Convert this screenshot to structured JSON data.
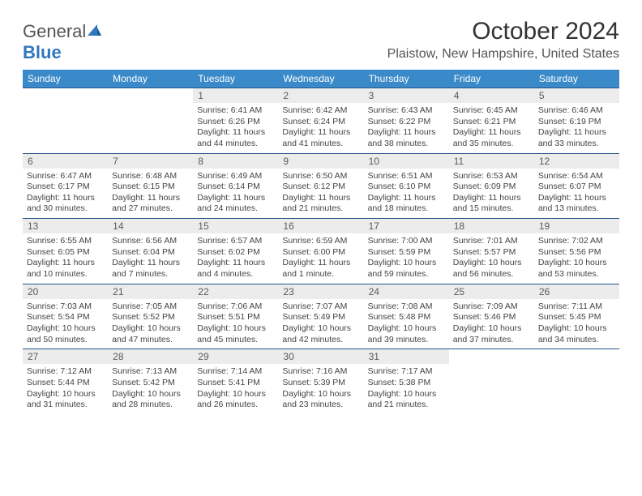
{
  "brand": {
    "name_g": "General",
    "name_b": "Blue"
  },
  "title": "October 2024",
  "location": "Plaistow, New Hampshire, United States",
  "colors": {
    "header_bg": "#3a8ac9",
    "header_text": "#ffffff",
    "daynum_bg": "#ececec",
    "border": "#25528a",
    "logo_blue": "#2f78bd",
    "page_bg": "#ffffff",
    "text_primary": "#333333",
    "text_muted": "#555555",
    "cell_text": "#444444"
  },
  "typography": {
    "title_fontsize": 30,
    "location_fontsize": 16,
    "weekday_fontsize": 12,
    "daynum_fontsize": 12,
    "content_fontsize": 10.5
  },
  "weekdays": [
    "Sunday",
    "Monday",
    "Tuesday",
    "Wednesday",
    "Thursday",
    "Friday",
    "Saturday"
  ],
  "weeks": [
    [
      {
        "n": "",
        "sr": "",
        "ss": "",
        "dl": ""
      },
      {
        "n": "",
        "sr": "",
        "ss": "",
        "dl": ""
      },
      {
        "n": "1",
        "sr": "Sunrise: 6:41 AM",
        "ss": "Sunset: 6:26 PM",
        "dl": "Daylight: 11 hours and 44 minutes."
      },
      {
        "n": "2",
        "sr": "Sunrise: 6:42 AM",
        "ss": "Sunset: 6:24 PM",
        "dl": "Daylight: 11 hours and 41 minutes."
      },
      {
        "n": "3",
        "sr": "Sunrise: 6:43 AM",
        "ss": "Sunset: 6:22 PM",
        "dl": "Daylight: 11 hours and 38 minutes."
      },
      {
        "n": "4",
        "sr": "Sunrise: 6:45 AM",
        "ss": "Sunset: 6:21 PM",
        "dl": "Daylight: 11 hours and 35 minutes."
      },
      {
        "n": "5",
        "sr": "Sunrise: 6:46 AM",
        "ss": "Sunset: 6:19 PM",
        "dl": "Daylight: 11 hours and 33 minutes."
      }
    ],
    [
      {
        "n": "6",
        "sr": "Sunrise: 6:47 AM",
        "ss": "Sunset: 6:17 PM",
        "dl": "Daylight: 11 hours and 30 minutes."
      },
      {
        "n": "7",
        "sr": "Sunrise: 6:48 AM",
        "ss": "Sunset: 6:15 PM",
        "dl": "Daylight: 11 hours and 27 minutes."
      },
      {
        "n": "8",
        "sr": "Sunrise: 6:49 AM",
        "ss": "Sunset: 6:14 PM",
        "dl": "Daylight: 11 hours and 24 minutes."
      },
      {
        "n": "9",
        "sr": "Sunrise: 6:50 AM",
        "ss": "Sunset: 6:12 PM",
        "dl": "Daylight: 11 hours and 21 minutes."
      },
      {
        "n": "10",
        "sr": "Sunrise: 6:51 AM",
        "ss": "Sunset: 6:10 PM",
        "dl": "Daylight: 11 hours and 18 minutes."
      },
      {
        "n": "11",
        "sr": "Sunrise: 6:53 AM",
        "ss": "Sunset: 6:09 PM",
        "dl": "Daylight: 11 hours and 15 minutes."
      },
      {
        "n": "12",
        "sr": "Sunrise: 6:54 AM",
        "ss": "Sunset: 6:07 PM",
        "dl": "Daylight: 11 hours and 13 minutes."
      }
    ],
    [
      {
        "n": "13",
        "sr": "Sunrise: 6:55 AM",
        "ss": "Sunset: 6:05 PM",
        "dl": "Daylight: 11 hours and 10 minutes."
      },
      {
        "n": "14",
        "sr": "Sunrise: 6:56 AM",
        "ss": "Sunset: 6:04 PM",
        "dl": "Daylight: 11 hours and 7 minutes."
      },
      {
        "n": "15",
        "sr": "Sunrise: 6:57 AM",
        "ss": "Sunset: 6:02 PM",
        "dl": "Daylight: 11 hours and 4 minutes."
      },
      {
        "n": "16",
        "sr": "Sunrise: 6:59 AM",
        "ss": "Sunset: 6:00 PM",
        "dl": "Daylight: 11 hours and 1 minute."
      },
      {
        "n": "17",
        "sr": "Sunrise: 7:00 AM",
        "ss": "Sunset: 5:59 PM",
        "dl": "Daylight: 10 hours and 59 minutes."
      },
      {
        "n": "18",
        "sr": "Sunrise: 7:01 AM",
        "ss": "Sunset: 5:57 PM",
        "dl": "Daylight: 10 hours and 56 minutes."
      },
      {
        "n": "19",
        "sr": "Sunrise: 7:02 AM",
        "ss": "Sunset: 5:56 PM",
        "dl": "Daylight: 10 hours and 53 minutes."
      }
    ],
    [
      {
        "n": "20",
        "sr": "Sunrise: 7:03 AM",
        "ss": "Sunset: 5:54 PM",
        "dl": "Daylight: 10 hours and 50 minutes."
      },
      {
        "n": "21",
        "sr": "Sunrise: 7:05 AM",
        "ss": "Sunset: 5:52 PM",
        "dl": "Daylight: 10 hours and 47 minutes."
      },
      {
        "n": "22",
        "sr": "Sunrise: 7:06 AM",
        "ss": "Sunset: 5:51 PM",
        "dl": "Daylight: 10 hours and 45 minutes."
      },
      {
        "n": "23",
        "sr": "Sunrise: 7:07 AM",
        "ss": "Sunset: 5:49 PM",
        "dl": "Daylight: 10 hours and 42 minutes."
      },
      {
        "n": "24",
        "sr": "Sunrise: 7:08 AM",
        "ss": "Sunset: 5:48 PM",
        "dl": "Daylight: 10 hours and 39 minutes."
      },
      {
        "n": "25",
        "sr": "Sunrise: 7:09 AM",
        "ss": "Sunset: 5:46 PM",
        "dl": "Daylight: 10 hours and 37 minutes."
      },
      {
        "n": "26",
        "sr": "Sunrise: 7:11 AM",
        "ss": "Sunset: 5:45 PM",
        "dl": "Daylight: 10 hours and 34 minutes."
      }
    ],
    [
      {
        "n": "27",
        "sr": "Sunrise: 7:12 AM",
        "ss": "Sunset: 5:44 PM",
        "dl": "Daylight: 10 hours and 31 minutes."
      },
      {
        "n": "28",
        "sr": "Sunrise: 7:13 AM",
        "ss": "Sunset: 5:42 PM",
        "dl": "Daylight: 10 hours and 28 minutes."
      },
      {
        "n": "29",
        "sr": "Sunrise: 7:14 AM",
        "ss": "Sunset: 5:41 PM",
        "dl": "Daylight: 10 hours and 26 minutes."
      },
      {
        "n": "30",
        "sr": "Sunrise: 7:16 AM",
        "ss": "Sunset: 5:39 PM",
        "dl": "Daylight: 10 hours and 23 minutes."
      },
      {
        "n": "31",
        "sr": "Sunrise: 7:17 AM",
        "ss": "Sunset: 5:38 PM",
        "dl": "Daylight: 10 hours and 21 minutes."
      },
      {
        "n": "",
        "sr": "",
        "ss": "",
        "dl": ""
      },
      {
        "n": "",
        "sr": "",
        "ss": "",
        "dl": ""
      }
    ]
  ]
}
